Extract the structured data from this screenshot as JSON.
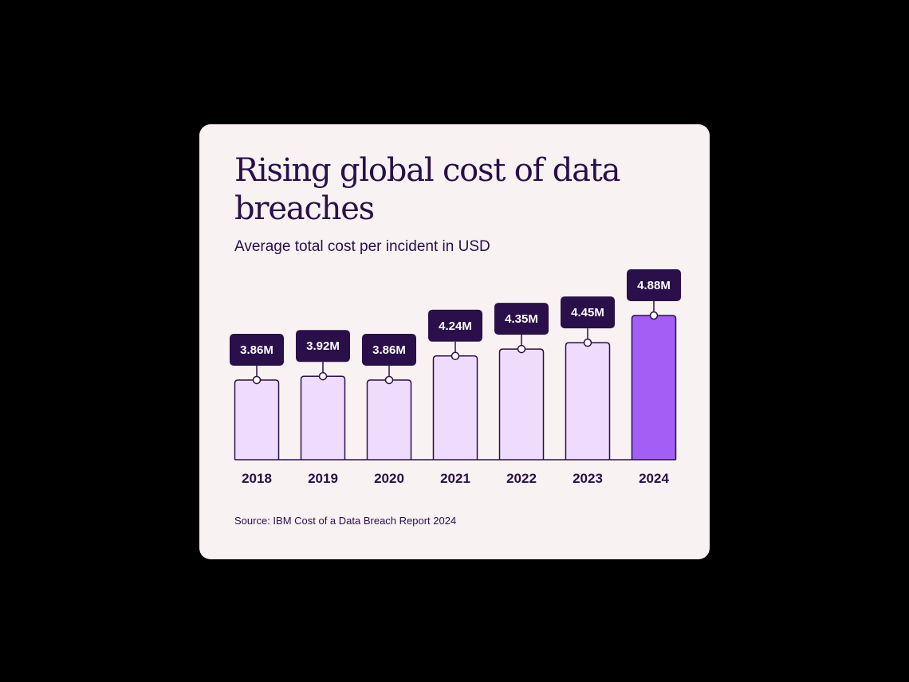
{
  "chart_data": {
    "type": "bar",
    "title": "Rising global cost of data breaches",
    "subtitle": "Average total cost per incident in USD",
    "source": "Source: IBM Cost of a Data Breach Report 2024",
    "categories": [
      "2018",
      "2019",
      "2020",
      "2021",
      "2022",
      "2023",
      "2024"
    ],
    "values": [
      3.86,
      3.92,
      3.86,
      4.24,
      4.35,
      4.45,
      4.88
    ],
    "value_labels": [
      "3.86M",
      "3.92M",
      "3.86M",
      "4.24M",
      "4.35M",
      "4.45M",
      "4.88M"
    ],
    "ylim": [
      2.6,
      4.88
    ],
    "grid": false,
    "legend": "none",
    "highlight_index": 6,
    "colors": {
      "bar": "#efdcfc",
      "bar_highlight": "#a25ef5",
      "outline": "#2a0f4a",
      "label_box": "#2a0f4a",
      "card": "#f8f2f2"
    }
  }
}
